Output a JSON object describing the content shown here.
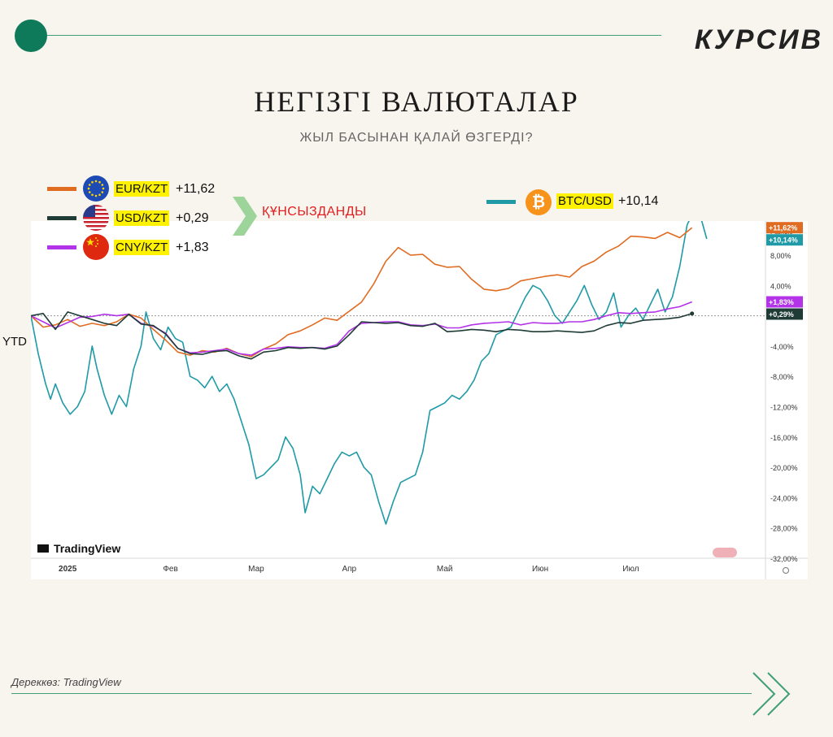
{
  "brand": "КУРСИВ",
  "title": "НЕГІЗГІ ВАЛЮТАЛАР",
  "subtitle": "ЖЫЛ БАСЫНАН ҚАЛАЙ ӨЗГЕРДІ?",
  "denominated_label": "ҚҰНСЫЗДАНДЫ",
  "ytd_label": "YTD",
  "source": "Дереккөз: TradingView",
  "watermark": "TradingView",
  "scale_mode": "Разные",
  "colors": {
    "eur": "#e06c21",
    "usd": "#1f3b36",
    "cny": "#b233e8",
    "btc": "#1f9aa6",
    "accent": "#0f7a5a",
    "highlight": "#fff200"
  },
  "legend": [
    {
      "name": "EUR/KZT",
      "value": "+11,62",
      "icon": "eu-flag-icon"
    },
    {
      "name": "USD/KZT",
      "value": "+0,29",
      "icon": "us-flag-icon"
    },
    {
      "name": "CNY/KZT",
      "value": "+1,83",
      "icon": "cn-flag-icon"
    }
  ],
  "btc_legend": {
    "name": "BTC/USD",
    "value": "+10,14",
    "icon": "bitcoin-icon"
  },
  "chart_data": {
    "type": "line",
    "x_ticks": [
      "2025",
      "Фев",
      "Мар",
      "Апр",
      "Май",
      "Июн",
      "Июл"
    ],
    "y_ticks": [
      "8,00%",
      "4,00%",
      "0",
      "-4,00%",
      "-8,00%",
      "-12,00%",
      "-16,00%",
      "-20,00%",
      "-24,00%",
      "-28,00%",
      "-32,00%"
    ],
    "y_tick_values": [
      8,
      4,
      0,
      -4,
      -8,
      -12,
      -16,
      -20,
      -24,
      -28,
      -32
    ],
    "ylim": [
      -32,
      12.5
    ],
    "series": [
      {
        "name": "EUR/KZT",
        "key": "eur",
        "label": "+11,62%",
        "last": 11.62,
        "points": [
          [
            0,
            0
          ],
          [
            5,
            -1.5
          ],
          [
            10,
            -1.2
          ],
          [
            15,
            -0.5
          ],
          [
            20,
            -1.4
          ],
          [
            25,
            -1.0
          ],
          [
            30,
            -1.3
          ],
          [
            35,
            -0.8
          ],
          [
            40,
            0.2
          ],
          [
            45,
            -0.3
          ],
          [
            50,
            -1.8
          ],
          [
            55,
            -3.2
          ],
          [
            60,
            -4.8
          ],
          [
            65,
            -5.2
          ],
          [
            70,
            -4.6
          ],
          [
            75,
            -4.8
          ],
          [
            80,
            -4.3
          ],
          [
            85,
            -5.0
          ],
          [
            90,
            -5.4
          ],
          [
            95,
            -4.4
          ],
          [
            100,
            -3.7
          ],
          [
            105,
            -2.5
          ],
          [
            110,
            -2.0
          ],
          [
            115,
            -1.2
          ],
          [
            120,
            -0.3
          ],
          [
            125,
            -0.6
          ],
          [
            130,
            0.6
          ],
          [
            135,
            1.8
          ],
          [
            140,
            4.2
          ],
          [
            145,
            7.2
          ],
          [
            150,
            9.0
          ],
          [
            155,
            8.0
          ],
          [
            160,
            8.1
          ],
          [
            165,
            6.8
          ],
          [
            170,
            6.4
          ],
          [
            175,
            6.5
          ],
          [
            180,
            4.8
          ],
          [
            185,
            3.5
          ],
          [
            190,
            3.3
          ],
          [
            195,
            3.6
          ],
          [
            200,
            4.6
          ],
          [
            205,
            4.9
          ],
          [
            210,
            5.2
          ],
          [
            215,
            5.4
          ],
          [
            220,
            5.1
          ],
          [
            225,
            6.5
          ],
          [
            230,
            7.2
          ],
          [
            235,
            8.4
          ],
          [
            240,
            9.2
          ],
          [
            245,
            10.5
          ],
          [
            250,
            10.4
          ],
          [
            255,
            10.2
          ],
          [
            260,
            11.0
          ],
          [
            265,
            10.3
          ],
          [
            270,
            11.62
          ]
        ]
      },
      {
        "name": "USD/KZT",
        "key": "usd",
        "label": "+0,29%",
        "last": 0.29,
        "points": [
          [
            0,
            0
          ],
          [
            5,
            0.3
          ],
          [
            10,
            -1.8
          ],
          [
            15,
            0.5
          ],
          [
            20,
            0.0
          ],
          [
            25,
            -0.5
          ],
          [
            30,
            -1.0
          ],
          [
            35,
            -1.3
          ],
          [
            40,
            0.2
          ],
          [
            45,
            -1.1
          ],
          [
            50,
            -1.3
          ],
          [
            55,
            -2.4
          ],
          [
            60,
            -4.3
          ],
          [
            65,
            -5.0
          ],
          [
            70,
            -5.1
          ],
          [
            75,
            -4.7
          ],
          [
            80,
            -4.6
          ],
          [
            85,
            -5.3
          ],
          [
            90,
            -5.7
          ],
          [
            95,
            -4.8
          ],
          [
            100,
            -4.6
          ],
          [
            105,
            -4.2
          ],
          [
            110,
            -4.3
          ],
          [
            115,
            -4.2
          ],
          [
            120,
            -4.4
          ],
          [
            125,
            -4.0
          ],
          [
            130,
            -2.5
          ],
          [
            135,
            -0.8
          ],
          [
            140,
            -0.9
          ],
          [
            145,
            -1.0
          ],
          [
            150,
            -0.9
          ],
          [
            155,
            -1.3
          ],
          [
            160,
            -1.4
          ],
          [
            165,
            -1.0
          ],
          [
            170,
            -2.1
          ],
          [
            175,
            -2.0
          ],
          [
            180,
            -1.8
          ],
          [
            185,
            -1.9
          ],
          [
            190,
            -2.1
          ],
          [
            195,
            -1.8
          ],
          [
            200,
            -1.9
          ],
          [
            205,
            -2.1
          ],
          [
            210,
            -2.1
          ],
          [
            215,
            -2.0
          ],
          [
            220,
            -2.1
          ],
          [
            225,
            -2.2
          ],
          [
            230,
            -2.0
          ],
          [
            235,
            -1.3
          ],
          [
            240,
            -0.9
          ],
          [
            245,
            -1.0
          ],
          [
            250,
            -0.6
          ],
          [
            255,
            -0.5
          ],
          [
            260,
            -0.4
          ],
          [
            265,
            -0.2
          ],
          [
            270,
            0.29
          ]
        ]
      },
      {
        "name": "CNY/KZT",
        "key": "cny",
        "label": "+1,83%",
        "last": 1.83,
        "points": [
          [
            0,
            0
          ],
          [
            5,
            -0.8
          ],
          [
            10,
            -1.6
          ],
          [
            15,
            -0.9
          ],
          [
            20,
            -0.2
          ],
          [
            25,
            -0.1
          ],
          [
            30,
            0.2
          ],
          [
            35,
            0.0
          ],
          [
            40,
            0.2
          ],
          [
            45,
            -1.0
          ],
          [
            50,
            -1.4
          ],
          [
            55,
            -2.3
          ],
          [
            60,
            -4.3
          ],
          [
            65,
            -4.9
          ],
          [
            70,
            -4.8
          ],
          [
            75,
            -4.6
          ],
          [
            80,
            -4.4
          ],
          [
            85,
            -5.0
          ],
          [
            90,
            -5.2
          ],
          [
            95,
            -4.4
          ],
          [
            100,
            -4.3
          ],
          [
            105,
            -4.1
          ],
          [
            110,
            -4.2
          ],
          [
            115,
            -4.2
          ],
          [
            120,
            -4.3
          ],
          [
            125,
            -3.8
          ],
          [
            130,
            -2.0
          ],
          [
            135,
            -1.0
          ],
          [
            140,
            -0.9
          ],
          [
            145,
            -0.8
          ],
          [
            150,
            -0.8
          ],
          [
            155,
            -1.2
          ],
          [
            160,
            -1.3
          ],
          [
            165,
            -1.1
          ],
          [
            170,
            -1.6
          ],
          [
            175,
            -1.6
          ],
          [
            180,
            -1.2
          ],
          [
            185,
            -1.0
          ],
          [
            190,
            -0.9
          ],
          [
            195,
            -0.8
          ],
          [
            200,
            -1.2
          ],
          [
            205,
            -0.9
          ],
          [
            210,
            -1.0
          ],
          [
            215,
            -1.0
          ],
          [
            220,
            -0.8
          ],
          [
            225,
            -0.8
          ],
          [
            230,
            -0.5
          ],
          [
            235,
            0.0
          ],
          [
            240,
            0.4
          ],
          [
            245,
            0.3
          ],
          [
            250,
            0.4
          ],
          [
            255,
            0.5
          ],
          [
            260,
            0.9
          ],
          [
            265,
            1.2
          ],
          [
            270,
            1.83
          ]
        ]
      },
      {
        "name": "BTC/USD",
        "key": "btc",
        "label": "+10,14%",
        "last": 10.14,
        "points": [
          [
            0,
            0
          ],
          [
            3,
            -5.0
          ],
          [
            6,
            -9.0
          ],
          [
            8,
            -11.0
          ],
          [
            10,
            -9.0
          ],
          [
            13,
            -11.5
          ],
          [
            16,
            -13.0
          ],
          [
            19,
            -12.0
          ],
          [
            22,
            -10.0
          ],
          [
            25,
            -4.0
          ],
          [
            27,
            -7.0
          ],
          [
            30,
            -10.5
          ],
          [
            33,
            -13.0
          ],
          [
            36,
            -10.5
          ],
          [
            39,
            -12.0
          ],
          [
            42,
            -7.0
          ],
          [
            45,
            -4.0
          ],
          [
            47,
            0.5
          ],
          [
            50,
            -3.0
          ],
          [
            53,
            -4.5
          ],
          [
            56,
            -1.5
          ],
          [
            59,
            -3.0
          ],
          [
            62,
            -3.5
          ],
          [
            65,
            -8.0
          ],
          [
            68,
            -8.5
          ],
          [
            71,
            -9.5
          ],
          [
            74,
            -8.0
          ],
          [
            77,
            -10.0
          ],
          [
            80,
            -9.0
          ],
          [
            83,
            -11.0
          ],
          [
            86,
            -14.0
          ],
          [
            89,
            -17.0
          ],
          [
            92,
            -21.5
          ],
          [
            95,
            -21.0
          ],
          [
            98,
            -20.0
          ],
          [
            101,
            -19.0
          ],
          [
            104,
            -16.0
          ],
          [
            107,
            -17.5
          ],
          [
            110,
            -21.0
          ],
          [
            112,
            -26.0
          ],
          [
            115,
            -22.5
          ],
          [
            118,
            -23.5
          ],
          [
            121,
            -21.5
          ],
          [
            124,
            -19.5
          ],
          [
            127,
            -18.0
          ],
          [
            130,
            -18.5
          ],
          [
            133,
            -18.0
          ],
          [
            136,
            -20.0
          ],
          [
            139,
            -21.0
          ],
          [
            142,
            -24.5
          ],
          [
            145,
            -27.5
          ],
          [
            148,
            -24.5
          ],
          [
            151,
            -22.0
          ],
          [
            154,
            -21.5
          ],
          [
            157,
            -21.0
          ],
          [
            160,
            -18.0
          ],
          [
            163,
            -12.5
          ],
          [
            166,
            -12.0
          ],
          [
            169,
            -11.5
          ],
          [
            172,
            -10.5
          ],
          [
            175,
            -11.0
          ],
          [
            178,
            -10.0
          ],
          [
            181,
            -8.5
          ],
          [
            184,
            -6.0
          ],
          [
            187,
            -5.0
          ],
          [
            190,
            -2.5
          ],
          [
            193,
            -2.0
          ],
          [
            196,
            -1.5
          ],
          [
            199,
            0.5
          ],
          [
            202,
            2.5
          ],
          [
            205,
            4.0
          ],
          [
            208,
            3.5
          ],
          [
            211,
            2.0
          ],
          [
            214,
            0.0
          ],
          [
            217,
            -1.0
          ],
          [
            220,
            0.5
          ],
          [
            223,
            2.0
          ],
          [
            226,
            4.0
          ],
          [
            229,
            1.5
          ],
          [
            232,
            -0.5
          ],
          [
            235,
            0.5
          ],
          [
            238,
            3.0
          ],
          [
            241,
            -1.5
          ],
          [
            244,
            0.0
          ],
          [
            247,
            1.0
          ],
          [
            250,
            -0.5
          ],
          [
            253,
            1.5
          ],
          [
            256,
            3.5
          ],
          [
            259,
            0.5
          ],
          [
            262,
            2.5
          ],
          [
            265,
            6.5
          ],
          [
            268,
            12.0
          ],
          [
            271,
            14.0
          ],
          [
            274,
            12.5
          ],
          [
            276,
            10.14
          ]
        ]
      }
    ]
  },
  "chart_axes": {
    "x_tick_at": [
      15,
      57,
      92,
      130,
      169,
      208,
      245
    ],
    "x_max": 300
  }
}
